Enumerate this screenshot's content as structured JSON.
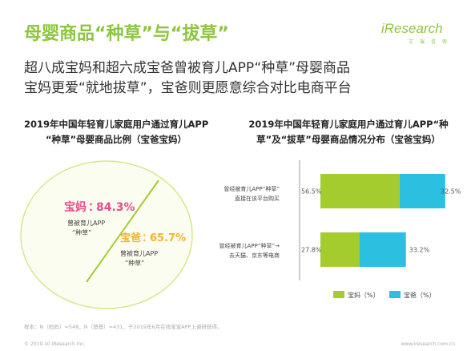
{
  "header": {
    "title": "母婴商品“种草”与“拔草”",
    "logo_main": "iResearch",
    "logo_sub": "艾 瑞 咨 询",
    "subtitle_line1": "超八成宝妈和超六成宝爸曾被育儿APP“种草”母婴商品",
    "subtitle_line2": "宝妈更爱“就地拔草”，宝爸则更愿意综合对比电商平台"
  },
  "colors": {
    "accent_green": "#8cc63f",
    "mom": "#a5cc2f",
    "dad": "#2bbfe0",
    "mom_label": "#e94b86",
    "dad_label": "#f2b233"
  },
  "chart_data": [
    {
      "type": "venn",
      "title_line1": "2019年中国年轻育儿家庭用户通过育儿APP",
      "title_line2": "“种草”母婴商品比例（宝爸宝妈）",
      "items": [
        {
          "group": "宝妈",
          "value": 84.3,
          "value_label": "84.3%",
          "desc_line1": "曾被育儿APP",
          "desc_line2": "“种草”"
        },
        {
          "group": "宝爸",
          "value": 65.7,
          "value_label": "65.7%",
          "desc_line1": "曾被育儿APP",
          "desc_line2": "“种草”"
        }
      ]
    },
    {
      "type": "bar",
      "stacked": true,
      "orientation": "horizontal",
      "title_line1": "2019年中国年轻育儿家庭用户通过育儿APP“种",
      "title_line2": "草”及“拔草”母婴商品情况分布（宝爸宝妈）",
      "categories": [
        [
          "曾经被育儿APP“种草”",
          "直接在该平台购买"
        ],
        [
          "曾经被育儿APP“种草”→",
          "去天猫、京东等电商"
        ]
      ],
      "series": [
        {
          "name": "宝妈（%）",
          "values": [
            56.5,
            27.8
          ],
          "labels": [
            "56.5%",
            "27.8%"
          ]
        },
        {
          "name": "宝爸（%）",
          "values": [
            32.5,
            33.2
          ],
          "labels": [
            "32.5%",
            "33.2%"
          ]
        }
      ],
      "legend": "bottom"
    }
  ],
  "footer": {
    "note": "样本：N（妈妈）=548，N（爸爸）=431，于2019年6月在线宝宝APP上调研获得。",
    "copyright": "© 2019.10 iResearch Inc.",
    "url": "www.iresearch.com.cn"
  }
}
